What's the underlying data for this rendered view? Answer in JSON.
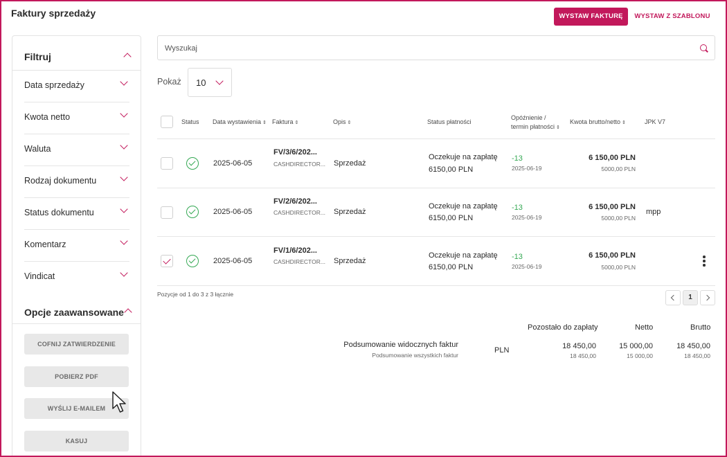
{
  "header": {
    "title": "Faktury sprzedaży",
    "primary_button": "WYSTAW FAKTURĘ",
    "secondary_button": "WYSTAW Z SZABLONU"
  },
  "sidebar": {
    "filter_title": "Filtruj",
    "filters": [
      "Data sprzedaży",
      "Kwota netto",
      "Waluta",
      "Rodzaj dokumentu",
      "Status dokumentu",
      "Komentarz",
      "Vindicat"
    ],
    "advanced_title": "Opcje zaawansowane",
    "actions": [
      "COFNIJ ZATWIERDZENIE",
      "POBIERZ PDF",
      "WYŚLIJ E-MAILEM",
      "KASUJ"
    ]
  },
  "search": {
    "placeholder": "Wyszukaj",
    "icon": "search-icon"
  },
  "page_size": {
    "label": "Pokaż",
    "value": "10"
  },
  "table": {
    "headers": {
      "status": "Status",
      "date": "Data wystawienia",
      "invoice": "Faktura",
      "desc": "Opis",
      "payment_status": "Status płatności",
      "delay_line1": "Opóźnienie /",
      "delay_line2": "termin płatności",
      "amount": "Kwota brutto/netto",
      "jpk": "JPK V7"
    },
    "rows": [
      {
        "checked": false,
        "date": "2025-06-05",
        "invoice_no": "FV/3/6/202...",
        "client": "CASHDIRECTOR...",
        "desc": "Sprzedaż",
        "payment_status": "Oczekuje na zapłatę",
        "payment_amount": "6150,00 PLN",
        "delay": "-13",
        "due": "2025-06-19",
        "gross": "6 150,00 PLN",
        "net": "5000,00 PLN",
        "jpk": ""
      },
      {
        "checked": false,
        "date": "2025-06-05",
        "invoice_no": "FV/2/6/202...",
        "client": "CASHDIRECTOR...",
        "desc": "Sprzedaż",
        "payment_status": "Oczekuje na zapłatę",
        "payment_amount": "6150,00 PLN",
        "delay": "-13",
        "due": "2025-06-19",
        "gross": "6 150,00 PLN",
        "net": "5000,00 PLN",
        "jpk": "mpp"
      },
      {
        "checked": true,
        "date": "2025-06-05",
        "invoice_no": "FV/1/6/202...",
        "client": "CASHDIRECTOR...",
        "desc": "Sprzedaż",
        "payment_status": "Oczekuje na zapłatę",
        "payment_amount": "6150,00 PLN",
        "delay": "-13",
        "due": "2025-06-19",
        "gross": "6 150,00 PLN",
        "net": "5000,00 PLN",
        "jpk": ""
      }
    ]
  },
  "pagination": {
    "range_text": "Pozycje od 1 do 3 z 3 łącznie",
    "current_page": "1"
  },
  "summary": {
    "col_remaining": "Pozostało do zapłaty",
    "col_net": "Netto",
    "col_gross": "Brutto",
    "visible_label": "Podsumowanie widocznych faktur",
    "all_label": "Podsumowanie wszystkich faktur",
    "currency": "PLN",
    "visible": {
      "remaining": "18 450,00",
      "net": "15 000,00",
      "gross": "18 450,00"
    },
    "all": {
      "remaining": "18 450,00",
      "net": "15 000,00",
      "gross": "18 450,00"
    }
  },
  "colors": {
    "accent": "#c2185b",
    "success": "#34a853"
  }
}
